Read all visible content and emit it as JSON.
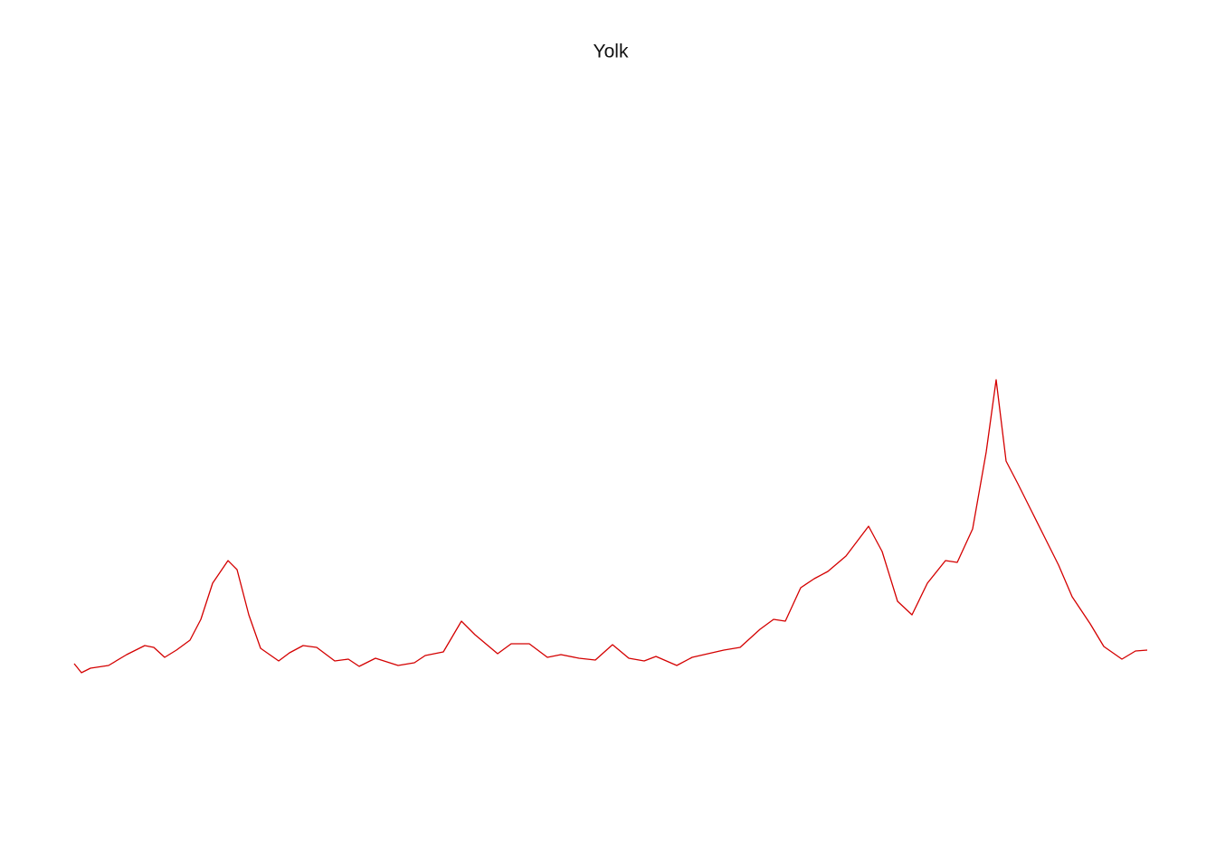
{
  "chart_data": {
    "type": "line",
    "title": "Yolk",
    "x": [
      0,
      8,
      18,
      38,
      58,
      78,
      88,
      100,
      113,
      128,
      140,
      153,
      170,
      180,
      193,
      206,
      226,
      238,
      253,
      268,
      288,
      303,
      315,
      333,
      358,
      376,
      388,
      408,
      428,
      443,
      468,
      483,
      503,
      523,
      538,
      558,
      576,
      595,
      613,
      630,
      643,
      666,
      683,
      718,
      736,
      758,
      773,
      786,
      803,
      818,
      833,
      853,
      878,
      893,
      910,
      926,
      943,
      963,
      976,
      993,
      1008,
      1019,
      1030,
      1043,
      1058,
      1073,
      1088,
      1103,
      1123,
      1138,
      1158,
      1173,
      1186
    ],
    "series": [
      {
        "color": "#d40000",
        "values": [
          11,
          1,
          6,
          9,
          21,
          31,
          29,
          18,
          26,
          37,
          60,
          100,
          125,
          115,
          65,
          28,
          14,
          23,
          31,
          29,
          14,
          16,
          8,
          17,
          9,
          12,
          20,
          24,
          58,
          43,
          22,
          33,
          33,
          18,
          21,
          17,
          15,
          32,
          17,
          14,
          19,
          9,
          18,
          26,
          29,
          49,
          60,
          58,
          95,
          105,
          113,
          130,
          163,
          135,
          80,
          65,
          100,
          125,
          123,
          160,
          245,
          325,
          235,
          210,
          180,
          150,
          120,
          85,
          55,
          30,
          16,
          25,
          26
        ]
      }
    ],
    "xlim": [
      0,
      1186
    ],
    "ylim": [
      0,
      325
    ]
  }
}
